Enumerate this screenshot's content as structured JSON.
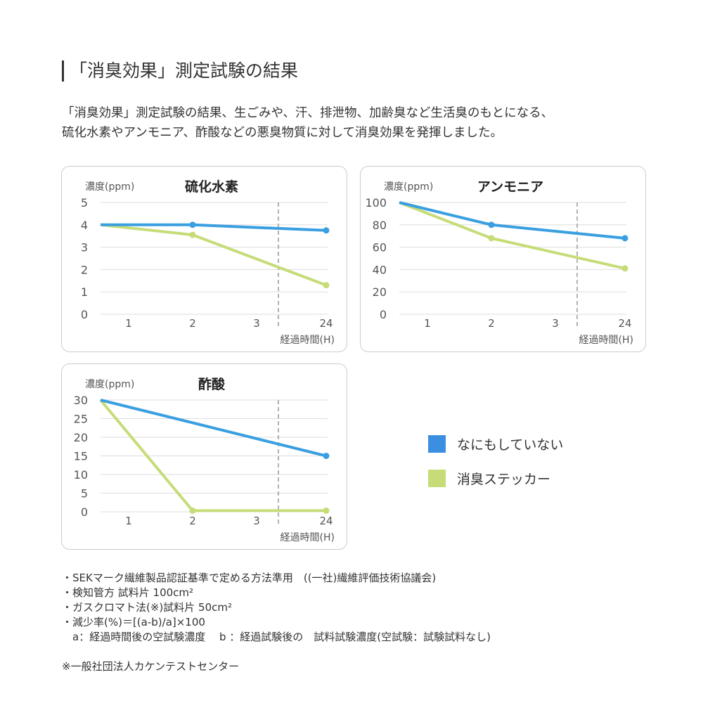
{
  "header": {
    "title": "「消臭効果」測定試験の結果",
    "intro_lines": [
      "「消臭効果」測定試験の結果、生ごみや、汗、排泄物、加齢臭など生活臭のもとになる、",
      "硫化水素やアンモニア、酢酸などの悪臭物質に対して消臭効果を発揮しました。"
    ]
  },
  "colors": {
    "blue": "#3a9fe0",
    "green": "#c6dc78"
  },
  "legend": [
    {
      "name": "なにもしていない",
      "color": "#3a8fe0"
    },
    {
      "name": "消臭ステッカー",
      "color": "#c6dc78"
    }
  ],
  "chart_data": [
    {
      "type": "line",
      "title": "硫化水素",
      "ylabel": "濃度(ppm)",
      "xlabel": "経過時間(H)",
      "x_ticks": [
        "1",
        "2",
        "3",
        "24"
      ],
      "yticks": [
        "0",
        "1",
        "2",
        "3",
        "4",
        "5"
      ],
      "ylim": [
        0,
        5
      ],
      "axis_break": "between 3 and 24",
      "grid": true,
      "series": [
        {
          "name": "なにもしていない",
          "points": [
            [
              0,
              4
            ],
            [
              2,
              4
            ],
            [
              24,
              3.75
            ]
          ]
        },
        {
          "name": "消臭ステッカー",
          "points": [
            [
              0,
              4
            ],
            [
              2,
              3.55
            ],
            [
              24,
              1.3
            ]
          ]
        }
      ]
    },
    {
      "type": "line",
      "title": "アンモニア",
      "ylabel": "濃度(ppm)",
      "xlabel": "経過時間(H)",
      "x_ticks": [
        "1",
        "2",
        "3",
        "24"
      ],
      "yticks": [
        "0",
        "20",
        "40",
        "60",
        "80",
        "100"
      ],
      "ylim": [
        0,
        100
      ],
      "axis_break": "between 3 and 24",
      "grid": true,
      "series": [
        {
          "name": "なにもしていない",
          "points": [
            [
              0,
              100
            ],
            [
              2,
              80
            ],
            [
              24,
              68
            ]
          ]
        },
        {
          "name": "消臭ステッカー",
          "points": [
            [
              0,
              100
            ],
            [
              2,
              68
            ],
            [
              24,
              41
            ]
          ]
        }
      ]
    },
    {
      "type": "line",
      "title": "酢酸",
      "ylabel": "濃度(ppm)",
      "xlabel": "経過時間(H)",
      "x_ticks": [
        "1",
        "2",
        "3",
        "24"
      ],
      "yticks": [
        "0",
        "5",
        "10",
        "15",
        "20",
        "25",
        "30"
      ],
      "ylim": [
        0,
        30
      ],
      "axis_break": "between 3 and 24",
      "grid": true,
      "series": [
        {
          "name": "なにもしていない",
          "points": [
            [
              0,
              30
            ],
            [
              24,
              15
            ]
          ]
        },
        {
          "name": "消臭ステッカー",
          "points": [
            [
              0,
              30
            ],
            [
              2,
              0.3
            ],
            [
              24,
              0.3
            ]
          ]
        }
      ]
    }
  ],
  "notes": [
    "・SEKマーク繊維製品認証基準で定める方法準用　((一社)繊維評価技術協議会)",
    "・検知管方 試料片 100cm²",
    "・ガスクロマト法(※)試料片 50cm²",
    "・減少率(%)＝[(a-b)/a]×100",
    "　a：経過時間後の空試験濃度　 b ：経過試験後の　試料試験濃度(空試験：試験試料なし)"
  ],
  "source": "※一般社団法人カケンテストセンター"
}
